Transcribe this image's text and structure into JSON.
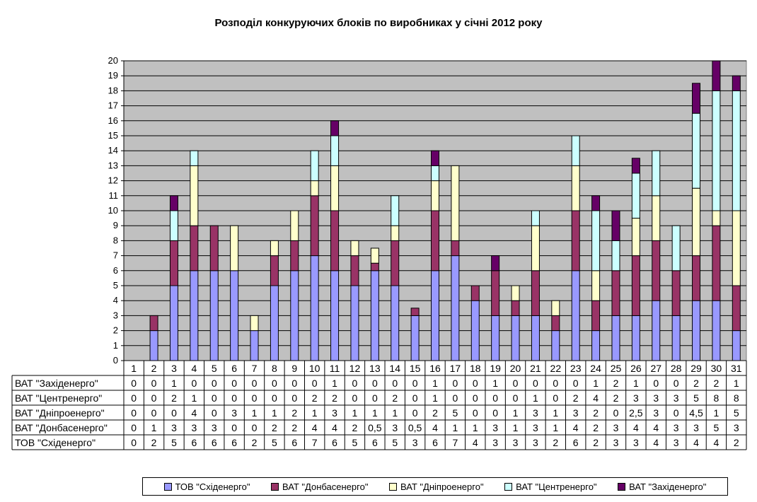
{
  "chart_data": {
    "type": "bar",
    "stacked": true,
    "title": "Розподіл конкуруючих блоків по виробниках у січні 2012 року",
    "xlabel": "",
    "ylabel": "",
    "ylim": [
      0,
      20
    ],
    "yticks": [
      0,
      1,
      2,
      3,
      4,
      5,
      6,
      7,
      8,
      9,
      10,
      11,
      12,
      13,
      14,
      15,
      16,
      17,
      18,
      19,
      20
    ],
    "grid": true,
    "plot_background": "#c0c0c0",
    "legend_position": "bottom",
    "categories": [
      "1",
      "2",
      "3",
      "4",
      "5",
      "6",
      "7",
      "8",
      "9",
      "10",
      "11",
      "12",
      "13",
      "14",
      "15",
      "16",
      "17",
      "18",
      "19",
      "20",
      "21",
      "22",
      "23",
      "24",
      "25",
      "26",
      "27",
      "28",
      "29",
      "30",
      "31"
    ],
    "series": [
      {
        "name": "ТОВ \"Східенерго\"",
        "color": "#9999ff",
        "values": [
          0,
          2,
          5,
          6,
          6,
          6,
          2,
          5,
          6,
          7,
          6,
          5,
          6,
          5,
          3,
          6,
          7,
          4,
          3,
          3,
          3,
          2,
          6,
          2,
          3,
          3,
          4,
          3,
          4,
          4,
          2
        ],
        "labels": [
          "0",
          "2",
          "5",
          "6",
          "6",
          "6",
          "2",
          "5",
          "6",
          "7",
          "6",
          "5",
          "6",
          "5",
          "3",
          "6",
          "7",
          "4",
          "3",
          "3",
          "3",
          "2",
          "6",
          "2",
          "3",
          "3",
          "4",
          "3",
          "4",
          "4",
          "2"
        ]
      },
      {
        "name": "ВАТ \"Донбасенерго\"",
        "color": "#993366",
        "values": [
          0,
          1,
          3,
          3,
          3,
          0,
          0,
          2,
          2,
          4,
          4,
          2,
          0.5,
          3,
          0.5,
          4,
          1,
          1,
          3,
          1,
          3,
          1,
          4,
          2,
          3,
          4,
          4,
          3,
          3,
          5,
          3
        ],
        "labels": [
          "0",
          "1",
          "3",
          "3",
          "3",
          "0",
          "0",
          "2",
          "2",
          "4",
          "4",
          "2",
          "0,5",
          "3",
          "0,5",
          "4",
          "1",
          "1",
          "3",
          "1",
          "3",
          "1",
          "4",
          "2",
          "3",
          "4",
          "4",
          "3",
          "3",
          "5",
          "3"
        ]
      },
      {
        "name": "ВАТ \"Дніпроенерго\"",
        "color": "#ffffcc",
        "values": [
          0,
          0,
          0,
          4,
          0,
          3,
          1,
          1,
          2,
          1,
          3,
          1,
          1,
          1,
          0,
          2,
          5,
          0,
          0,
          1,
          3,
          1,
          3,
          2,
          0,
          2.5,
          3,
          0,
          4.5,
          1,
          5
        ],
        "labels": [
          "0",
          "0",
          "0",
          "4",
          "0",
          "3",
          "1",
          "1",
          "2",
          "1",
          "3",
          "1",
          "1",
          "1",
          "0",
          "2",
          "5",
          "0",
          "0",
          "1",
          "3",
          "1",
          "3",
          "2",
          "0",
          "2,5",
          "3",
          "0",
          "4,5",
          "1",
          "5"
        ]
      },
      {
        "name": "ВАТ \"Центренерго\"",
        "color": "#ccffff",
        "values": [
          0,
          0,
          2,
          1,
          0,
          0,
          0,
          0,
          0,
          2,
          2,
          0,
          0,
          2,
          0,
          1,
          0,
          0,
          0,
          0,
          1,
          0,
          2,
          4,
          2,
          3,
          3,
          3,
          5,
          8,
          8
        ],
        "labels": [
          "0",
          "0",
          "2",
          "1",
          "0",
          "0",
          "0",
          "0",
          "0",
          "2",
          "2",
          "0",
          "0",
          "2",
          "0",
          "1",
          "0",
          "0",
          "0",
          "0",
          "1",
          "0",
          "2",
          "4",
          "2",
          "3",
          "3",
          "3",
          "5",
          "8",
          "8"
        ]
      },
      {
        "name": "ВАТ \"Західенерго\"",
        "color": "#660066",
        "values": [
          0,
          0,
          1,
          0,
          0,
          0,
          0,
          0,
          0,
          0,
          1,
          0,
          0,
          0,
          0,
          1,
          0,
          0,
          1,
          0,
          0,
          0,
          0,
          1,
          2,
          1,
          0,
          0,
          2,
          2,
          1
        ],
        "labels": [
          "0",
          "0",
          "1",
          "0",
          "0",
          "0",
          "0",
          "0",
          "0",
          "0",
          "1",
          "0",
          "0",
          "0",
          "0",
          "1",
          "0",
          "0",
          "1",
          "0",
          "0",
          "0",
          "0",
          "1",
          "2",
          "1",
          "0",
          "0",
          "2",
          "2",
          "1"
        ]
      }
    ],
    "table_row_order": [
      "ВАТ \"Західенерго\"",
      "ВАТ \"Центренерго\"",
      "ВАТ \"Дніпроенерго\"",
      "ВАТ \"Донбасенерго\"",
      "ТОВ \"Східенерго\""
    ]
  }
}
